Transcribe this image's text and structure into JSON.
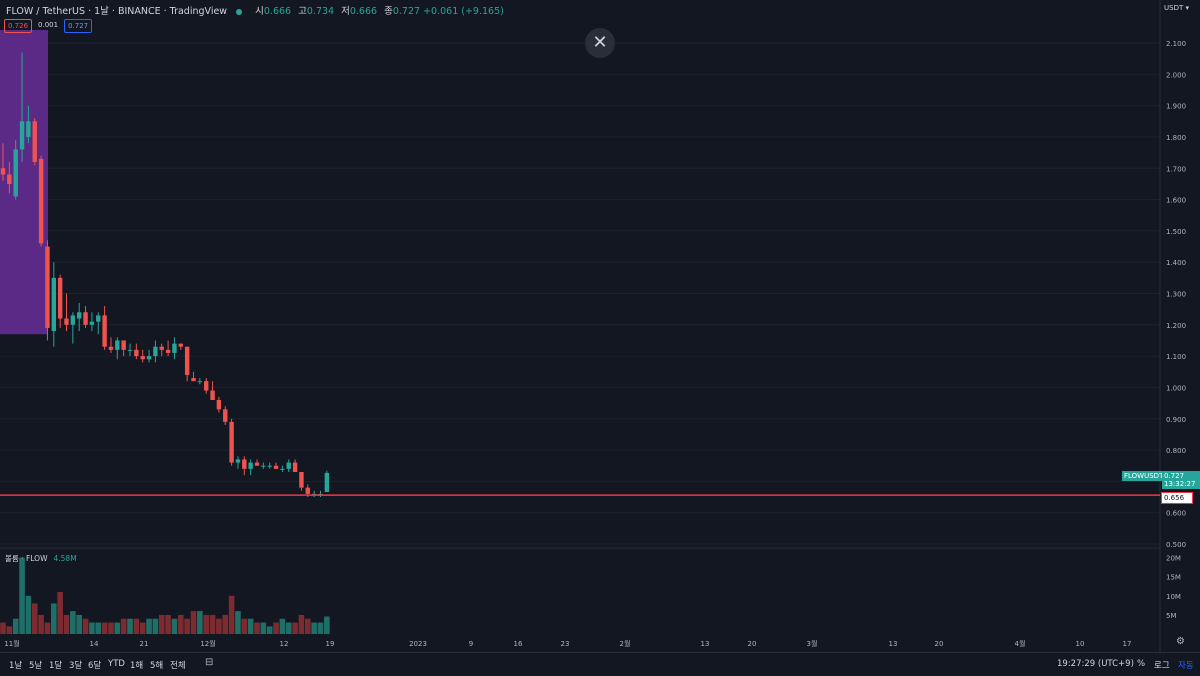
{
  "header": {
    "title": "FLOW / TetherUS · 1날 · BINANCE · TradingView",
    "open_label": "시",
    "open_value": "0.666",
    "high_label": "고",
    "high_value": "0.734",
    "low_label": "저",
    "low_value": "0.666",
    "close_label": "종",
    "close_value": "0.727",
    "change": "+0.061 (+9.165)"
  },
  "trade": {
    "sell": "0.726",
    "spread": "0.001",
    "buy": "0.727"
  },
  "currency": "USDT",
  "price_axis": [
    "2.100",
    "2.000",
    "1.900",
    "1.800",
    "1.700",
    "1.600",
    "1.500",
    "1.400",
    "1.300",
    "1.200",
    "1.100",
    "1.000",
    "0.900",
    "0.800",
    "0.700",
    "0.600",
    "0.500"
  ],
  "volume_axis": [
    "20M",
    "15M",
    "10M",
    "5M"
  ],
  "time_axis": [
    "11월",
    "14",
    "21",
    "12월",
    "12",
    "19",
    "2023",
    "9",
    "16",
    "23",
    "2월",
    "13",
    "20",
    "3월",
    "13",
    "20",
    "4월",
    "10",
    "17"
  ],
  "symbol_tag": "FLOWUSDT",
  "last_price": "0.727",
  "countdown": "13:32:27",
  "hline_price": "0.656",
  "volume": {
    "label": "볼륨 · FLOW",
    "value": "4.58M"
  },
  "timeframes": [
    "1날",
    "5날",
    "1달",
    "3달",
    "6달",
    "YTD",
    "1해",
    "5해",
    "전체"
  ],
  "footer": {
    "time": "19:27:29 (UTC+9)",
    "percent": "%",
    "log": "로그",
    "auto": "자동"
  },
  "colors": {
    "up": "#26a69a",
    "down": "#ef5350",
    "hline": "#f23645",
    "highlight": "#5b2a86"
  },
  "chart_data": {
    "type": "candlestick",
    "series": [
      {
        "o": 1.7,
        "h": 1.78,
        "l": 1.66,
        "c": 1.68
      },
      {
        "o": 1.68,
        "h": 1.72,
        "l": 1.62,
        "c": 1.65
      },
      {
        "o": 1.61,
        "h": 1.79,
        "l": 1.6,
        "c": 1.76
      },
      {
        "o": 1.76,
        "h": 2.07,
        "l": 1.72,
        "c": 1.85
      },
      {
        "o": 1.8,
        "h": 1.9,
        "l": 1.78,
        "c": 1.85
      },
      {
        "o": 1.85,
        "h": 1.86,
        "l": 1.71,
        "c": 1.72
      },
      {
        "o": 1.73,
        "h": 1.74,
        "l": 1.45,
        "c": 1.46
      },
      {
        "o": 1.45,
        "h": 1.47,
        "l": 1.15,
        "c": 1.19
      },
      {
        "o": 1.18,
        "h": 1.4,
        "l": 1.13,
        "c": 1.35
      },
      {
        "o": 1.35,
        "h": 1.36,
        "l": 1.19,
        "c": 1.22
      },
      {
        "o": 1.22,
        "h": 1.3,
        "l": 1.18,
        "c": 1.2
      },
      {
        "o": 1.2,
        "h": 1.24,
        "l": 1.14,
        "c": 1.23
      },
      {
        "o": 1.22,
        "h": 1.27,
        "l": 1.18,
        "c": 1.24
      },
      {
        "o": 1.24,
        "h": 1.26,
        "l": 1.19,
        "c": 1.2
      },
      {
        "o": 1.2,
        "h": 1.24,
        "l": 1.18,
        "c": 1.21
      },
      {
        "o": 1.21,
        "h": 1.24,
        "l": 1.17,
        "c": 1.23
      },
      {
        "o": 1.23,
        "h": 1.26,
        "l": 1.12,
        "c": 1.13
      },
      {
        "o": 1.13,
        "h": 1.16,
        "l": 1.11,
        "c": 1.12
      },
      {
        "o": 1.12,
        "h": 1.16,
        "l": 1.09,
        "c": 1.15
      },
      {
        "o": 1.15,
        "h": 1.15,
        "l": 1.1,
        "c": 1.12
      },
      {
        "o": 1.12,
        "h": 1.14,
        "l": 1.1,
        "c": 1.12
      },
      {
        "o": 1.12,
        "h": 1.14,
        "l": 1.09,
        "c": 1.1
      },
      {
        "o": 1.1,
        "h": 1.12,
        "l": 1.08,
        "c": 1.09
      },
      {
        "o": 1.09,
        "h": 1.12,
        "l": 1.08,
        "c": 1.1
      },
      {
        "o": 1.1,
        "h": 1.15,
        "l": 1.08,
        "c": 1.13
      },
      {
        "o": 1.13,
        "h": 1.14,
        "l": 1.1,
        "c": 1.12
      },
      {
        "o": 1.12,
        "h": 1.15,
        "l": 1.1,
        "c": 1.11
      },
      {
        "o": 1.11,
        "h": 1.16,
        "l": 1.09,
        "c": 1.14
      },
      {
        "o": 1.14,
        "h": 1.14,
        "l": 1.12,
        "c": 1.13
      },
      {
        "o": 1.13,
        "h": 1.13,
        "l": 1.02,
        "c": 1.04
      },
      {
        "o": 1.03,
        "h": 1.05,
        "l": 1.02,
        "c": 1.02
      },
      {
        "o": 1.02,
        "h": 1.03,
        "l": 1.01,
        "c": 1.02
      },
      {
        "o": 1.02,
        "h": 1.03,
        "l": 0.98,
        "c": 0.99
      },
      {
        "o": 0.99,
        "h": 1.02,
        "l": 0.96,
        "c": 0.96
      },
      {
        "o": 0.96,
        "h": 0.97,
        "l": 0.92,
        "c": 0.93
      },
      {
        "o": 0.93,
        "h": 0.94,
        "l": 0.88,
        "c": 0.89
      },
      {
        "o": 0.89,
        "h": 0.9,
        "l": 0.75,
        "c": 0.76
      },
      {
        "o": 0.76,
        "h": 0.78,
        "l": 0.74,
        "c": 0.77
      },
      {
        "o": 0.77,
        "h": 0.78,
        "l": 0.72,
        "c": 0.74
      },
      {
        "o": 0.74,
        "h": 0.77,
        "l": 0.72,
        "c": 0.76
      },
      {
        "o": 0.76,
        "h": 0.77,
        "l": 0.75,
        "c": 0.75
      },
      {
        "o": 0.75,
        "h": 0.76,
        "l": 0.74,
        "c": 0.75
      },
      {
        "o": 0.75,
        "h": 0.76,
        "l": 0.74,
        "c": 0.75
      },
      {
        "o": 0.75,
        "h": 0.76,
        "l": 0.74,
        "c": 0.74
      },
      {
        "o": 0.74,
        "h": 0.75,
        "l": 0.73,
        "c": 0.74
      },
      {
        "o": 0.74,
        "h": 0.77,
        "l": 0.73,
        "c": 0.76
      },
      {
        "o": 0.76,
        "h": 0.77,
        "l": 0.73,
        "c": 0.73
      },
      {
        "o": 0.73,
        "h": 0.73,
        "l": 0.67,
        "c": 0.68
      },
      {
        "o": 0.68,
        "h": 0.69,
        "l": 0.65,
        "c": 0.66
      },
      {
        "o": 0.66,
        "h": 0.67,
        "l": 0.65,
        "c": 0.66
      },
      {
        "o": 0.66,
        "h": 0.67,
        "l": 0.65,
        "c": 0.66
      },
      {
        "o": 0.666,
        "h": 0.734,
        "l": 0.666,
        "c": 0.727
      }
    ],
    "volumes": [
      3,
      2,
      4,
      20,
      10,
      8,
      5,
      3,
      8,
      11,
      5,
      6,
      5,
      4,
      3,
      3,
      3,
      3,
      3,
      4,
      4,
      4,
      3,
      4,
      4,
      5,
      5,
      4,
      5,
      4,
      6,
      6,
      5,
      5,
      4,
      5,
      10,
      6,
      4,
      4,
      3,
      3,
      2,
      3,
      4,
      3,
      3,
      5,
      4,
      3,
      3,
      4.58
    ],
    "ylim": [
      0.5,
      2.15
    ],
    "volume_max": 22,
    "hline": 0.656
  }
}
